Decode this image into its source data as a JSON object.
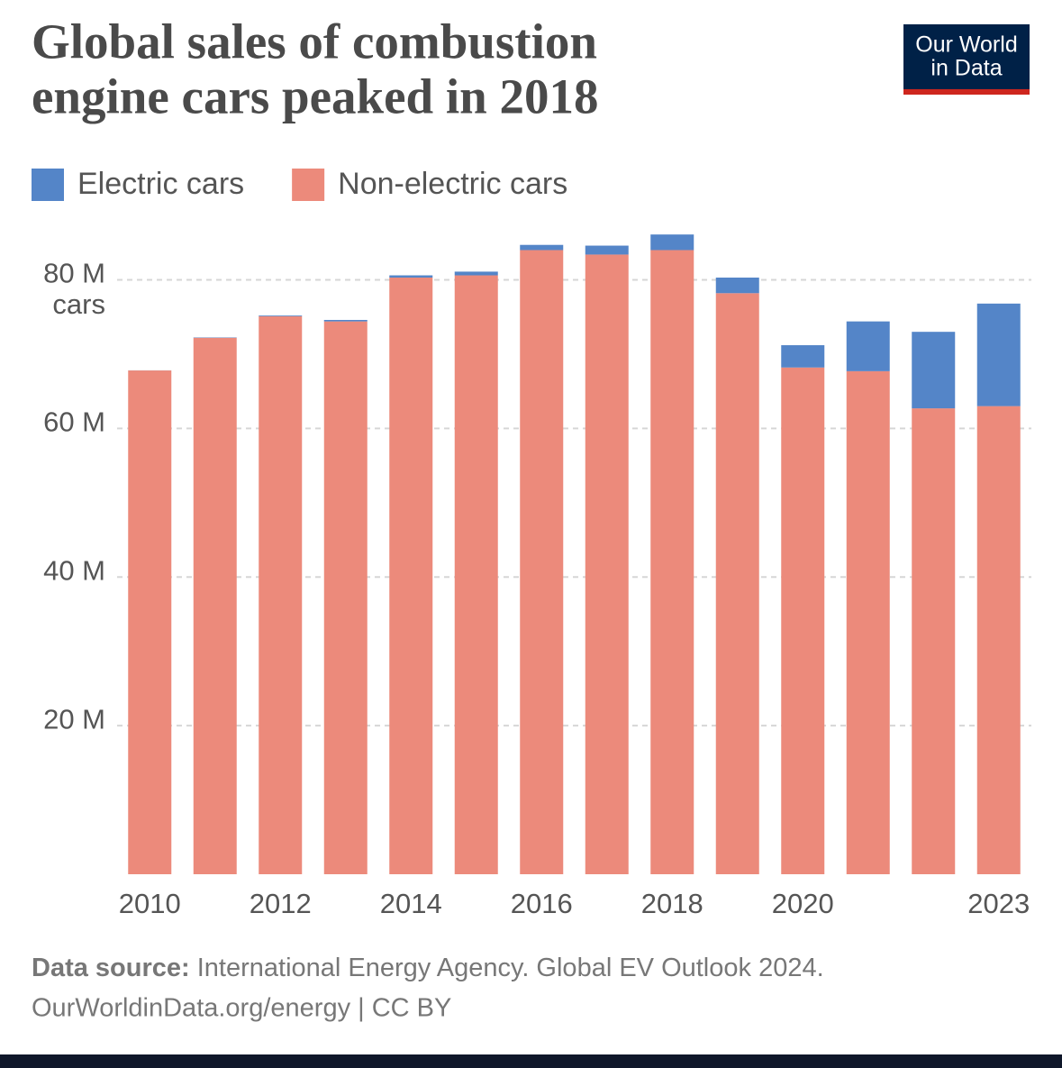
{
  "chart_data": {
    "type": "stacked_bar",
    "title": [
      "Global sales of combustion",
      "engine cars peaked in 2018"
    ],
    "logo": [
      "Our World",
      "in Data"
    ],
    "y_unit": "cars",
    "categories": [
      "2010",
      null,
      "2012",
      null,
      "2014",
      null,
      "2016",
      null,
      "2018",
      null,
      "2020",
      null,
      null,
      "2023"
    ],
    "series": [
      {
        "name": "Electric cars",
        "color": "#5485c8",
        "values": [
          0.01,
          0.05,
          0.1,
          0.2,
          0.3,
          0.5,
          0.7,
          1.2,
          2.1,
          2.1,
          3.0,
          6.7,
          10.3,
          13.8
        ]
      },
      {
        "name": "Non-electric cars",
        "color": "#ec8a7b",
        "values": [
          67.8,
          72.2,
          75.1,
          74.4,
          80.3,
          80.6,
          84.0,
          83.4,
          84.0,
          78.2,
          68.2,
          67.7,
          62.7,
          63.0
        ]
      }
    ],
    "ylim": [
      0,
      86
    ],
    "yticks": [
      {
        "value": 20,
        "label": "20 M"
      },
      {
        "value": 40,
        "label": "40 M"
      },
      {
        "value": 60,
        "label": "60 M"
      },
      {
        "value": 80,
        "label": "80 M"
      }
    ],
    "grid": true,
    "source_label": "Data source:",
    "source": "International Energy Agency. Global EV Outlook 2024.",
    "url_line": "OurWorldinData.org/energy | CC BY"
  }
}
